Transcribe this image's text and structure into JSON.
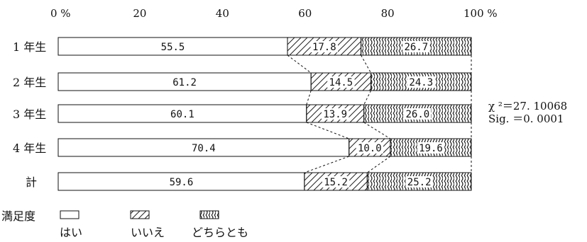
{
  "chart_data": {
    "type": "bar",
    "orientation": "horizontal",
    "stacked": true,
    "title": "",
    "xlabel": "",
    "ylabel": "",
    "xlim": [
      0,
      100
    ],
    "x_ticks": [
      "0 %",
      "20",
      "40",
      "60",
      "80",
      "100 %"
    ],
    "categories": [
      "1 年生",
      "2 年生",
      "3 年生",
      "4 年生",
      "計"
    ],
    "series": [
      {
        "name": "はい",
        "values": [
          55.5,
          61.2,
          60.1,
          70.4,
          59.6
        ]
      },
      {
        "name": "いいえ",
        "values": [
          17.8,
          14.5,
          13.9,
          10.0,
          15.2
        ]
      },
      {
        "name": "どちらとも",
        "values": [
          26.7,
          24.3,
          26.0,
          19.6,
          25.2
        ]
      }
    ],
    "value_labels": [
      [
        "55.5",
        "17.8",
        "26.7"
      ],
      [
        "61.2",
        "14.5",
        "24.3"
      ],
      [
        "60.1",
        "13.9",
        "26.0"
      ],
      [
        "70.4",
        "10.0",
        "19.6"
      ],
      [
        "59.6",
        "15.2",
        "25.2"
      ]
    ],
    "legend": {
      "title": "満足度",
      "position": "bottom-left",
      "items": [
        "はい",
        "いいえ",
        "どちらとも"
      ]
    },
    "annotation": {
      "chi_square": "χ ²＝27. 10068",
      "significance": "Sig. ＝0. 0001"
    },
    "grid": false
  }
}
